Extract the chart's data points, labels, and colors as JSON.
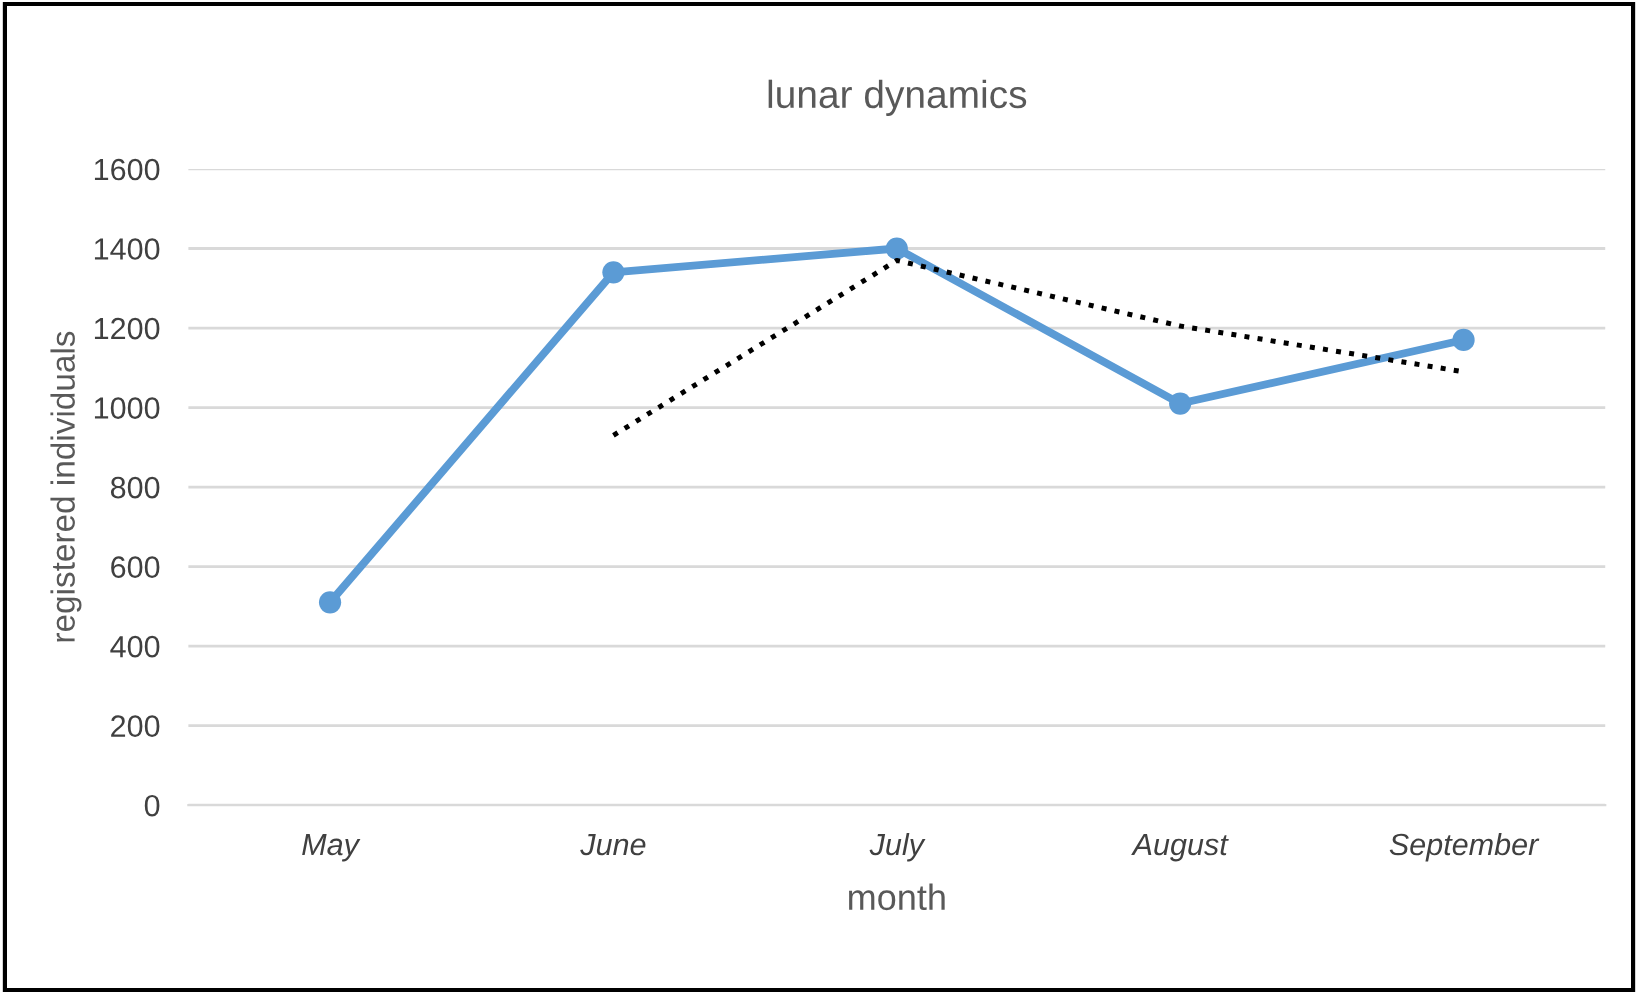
{
  "chart_data": {
    "type": "line",
    "title": "lunar dynamics",
    "xlabel": "month",
    "ylabel": "registered individuals",
    "categories": [
      "May",
      "June",
      "July",
      "August",
      "September"
    ],
    "series": [
      {
        "color": "#5b9bd5",
        "values": [
          510,
          1340,
          1400,
          1010,
          1170
        ],
        "marker": "circle",
        "line_style": "solid"
      },
      {
        "color": "#000000",
        "values": [
          null,
          930,
          1370,
          1205,
          1090
        ],
        "marker": "none",
        "line_style": "dotted"
      }
    ],
    "ylim": [
      0,
      1600
    ],
    "yticks": [
      0,
      200,
      400,
      600,
      800,
      1000,
      1200,
      1400,
      1600
    ],
    "grid": "y",
    "legend": false
  }
}
